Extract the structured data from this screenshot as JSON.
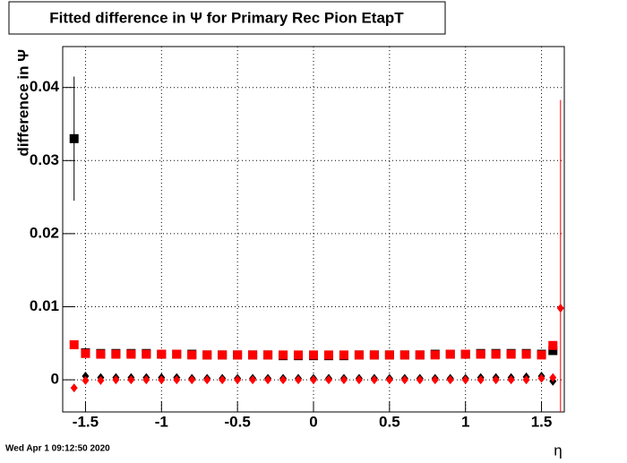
{
  "chart_data": {
    "type": "scatter",
    "title": "Fitted difference in  Ψ  for Primary Rec Pion EtapT",
    "x_label": "η",
    "y_label": "difference in  Ψ",
    "timestamp": "Wed Apr  1 09:12:50 2020",
    "x": [
      -1.575,
      -1.5,
      -1.4,
      -1.3,
      -1.2,
      -1.1,
      -1.0,
      -0.9,
      -0.8,
      -0.7,
      -0.6,
      -0.5,
      -0.4,
      -0.3,
      -0.2,
      -0.1,
      0,
      0.1,
      0.2,
      0.3,
      0.4,
      0.5,
      0.6,
      0.7,
      0.8,
      0.9,
      1.0,
      1.1,
      1.2,
      1.3,
      1.4,
      1.5,
      1.575,
      1.625
    ],
    "series": [
      {
        "color": "#000000",
        "marker": "square",
        "values": [
          0.033,
          0.0037,
          0.0036,
          0.0036,
          0.0036,
          0.0036,
          0.0035,
          0.0035,
          0.0035,
          0.0034,
          0.0034,
          0.0034,
          0.0034,
          0.0034,
          0.0033,
          0.0033,
          0.0033,
          0.0033,
          0.0033,
          0.0034,
          0.0034,
          0.0034,
          0.0034,
          0.0034,
          0.0035,
          0.0035,
          0.0035,
          0.0036,
          0.0036,
          0.0036,
          0.0036,
          0.0035,
          0.004,
          null
        ],
        "errors": [
          0.0085,
          null,
          null,
          null,
          null,
          null,
          null,
          null,
          null,
          null,
          null,
          null,
          null,
          null,
          null,
          null,
          null,
          null,
          null,
          null,
          null,
          null,
          null,
          null,
          null,
          null,
          null,
          null,
          null,
          null,
          null,
          null,
          null,
          null
        ]
      },
      {
        "color": "#ff0000",
        "marker": "square",
        "values": [
          0.0048,
          0.0036,
          0.0035,
          0.0035,
          0.0035,
          0.0035,
          0.0035,
          0.0035,
          0.0034,
          0.0034,
          0.0034,
          0.0034,
          0.0034,
          0.0034,
          0.0034,
          0.0034,
          0.0034,
          0.0034,
          0.0034,
          0.0034,
          0.0034,
          0.0034,
          0.0034,
          0.0034,
          0.0034,
          0.0035,
          0.0035,
          0.0035,
          0.0035,
          0.0035,
          0.0035,
          0.0034,
          0.0047,
          null
        ],
        "errors": [
          null,
          null,
          null,
          null,
          null,
          null,
          null,
          null,
          null,
          null,
          null,
          null,
          null,
          null,
          null,
          null,
          null,
          null,
          null,
          null,
          null,
          null,
          null,
          null,
          null,
          null,
          null,
          null,
          null,
          null,
          null,
          null,
          null,
          null
        ]
      },
      {
        "color": "#000000",
        "marker": "diamond",
        "values": [
          null,
          0.0005,
          0.0003,
          0.0003,
          0.0003,
          0.0003,
          0.0003,
          0.0003,
          0.0002,
          0.0002,
          0.0002,
          0.0002,
          0.0002,
          0.0002,
          0.0002,
          0.0002,
          0.0002,
          0.0002,
          0.0002,
          0.0002,
          0.0002,
          0.0002,
          0.0002,
          0.0002,
          0.0002,
          0.0002,
          0.0002,
          0.0003,
          0.0003,
          0.0003,
          0.0004,
          0.0005,
          -0.0002,
          null
        ],
        "errors": [
          null,
          null,
          null,
          null,
          null,
          null,
          null,
          null,
          null,
          null,
          null,
          null,
          null,
          null,
          null,
          null,
          null,
          null,
          null,
          null,
          null,
          null,
          null,
          null,
          null,
          null,
          null,
          null,
          null,
          null,
          null,
          null,
          null,
          null
        ]
      },
      {
        "color": "#ff0000",
        "marker": "diamond",
        "values": [
          -0.0011,
          -0.0001,
          -0.0001,
          0.0,
          0.0,
          0.0,
          0.0,
          0.0,
          0.0,
          0.0,
          0.0,
          0.0,
          0.0,
          0.0,
          0.0,
          0.0,
          0.0,
          0.0,
          0.0,
          0.0,
          0.0,
          0.0,
          0.0,
          0.0,
          0.0,
          0.0,
          0.0,
          0.0,
          0.0,
          0.0,
          0.0,
          0.0002,
          0.0003,
          0.0098
        ],
        "errors": [
          null,
          null,
          null,
          null,
          null,
          null,
          null,
          null,
          null,
          null,
          null,
          null,
          null,
          null,
          null,
          null,
          null,
          null,
          null,
          null,
          null,
          null,
          null,
          null,
          null,
          null,
          null,
          null,
          null,
          null,
          null,
          null,
          null,
          0.0285
        ]
      }
    ],
    "xlim": [
      -1.65,
      1.65
    ],
    "ylim": [
      -0.0044,
      0.0456
    ],
    "xticks": [
      -1.5,
      -1,
      -0.5,
      0,
      0.5,
      1,
      1.5
    ],
    "yticks": [
      0,
      0.01,
      0.02,
      0.03,
      0.04
    ],
    "grid": true
  }
}
